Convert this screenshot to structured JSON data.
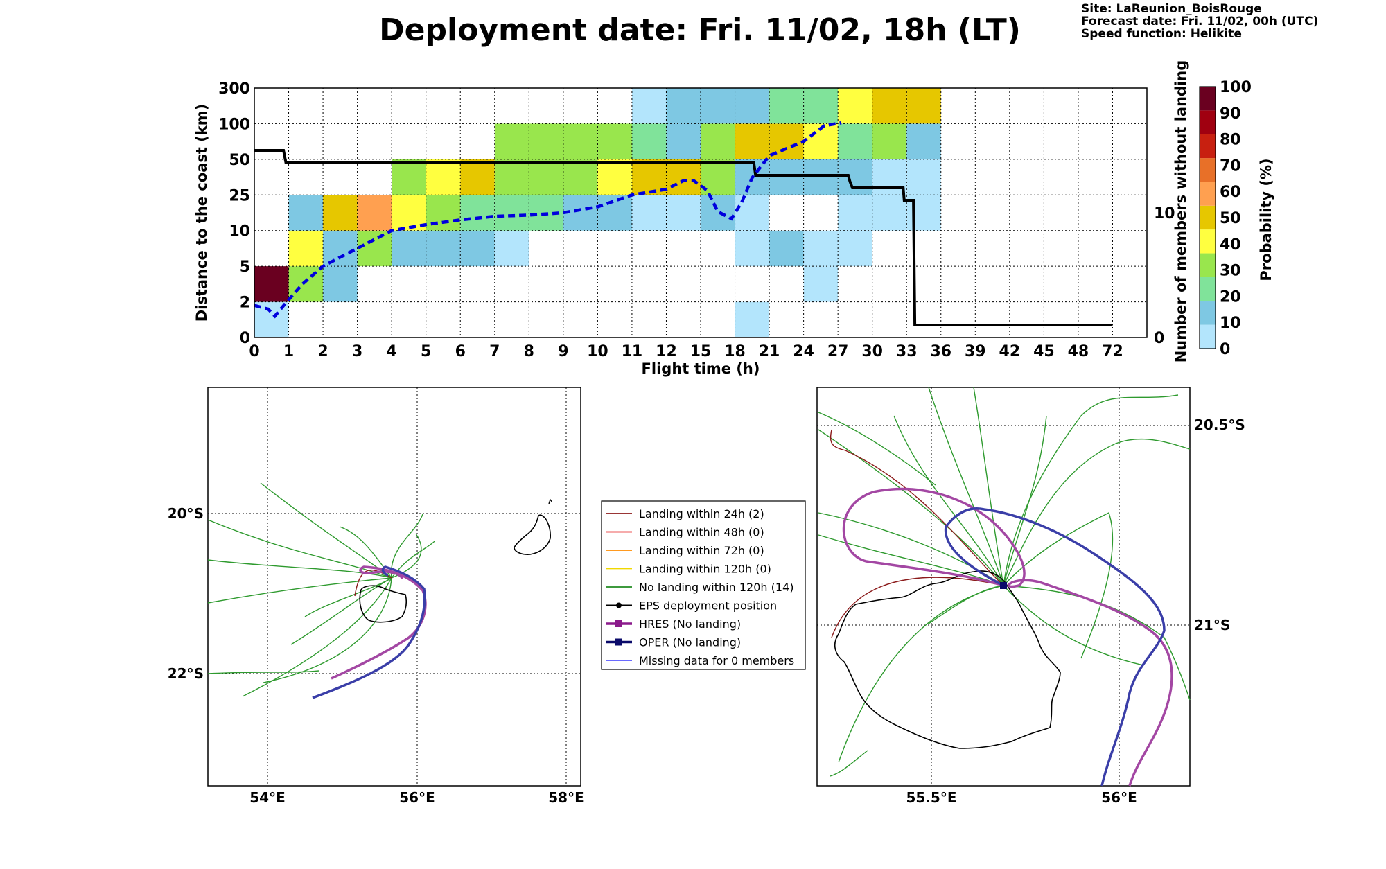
{
  "title": "Deployment date: Fri. 11/02, 18h (LT)",
  "info": {
    "site": "Site: LaReunion_BoisRouge",
    "forecast": "Forecast date: Fri. 11/02, 00h (UTC)",
    "speed": "Speed function: Helikite"
  },
  "colorbar": {
    "label": "Probability (%)",
    "ticks": [
      "0",
      "10",
      "20",
      "30",
      "40",
      "50",
      "60",
      "70",
      "80",
      "90",
      "100"
    ],
    "colors": [
      "#b3e5fc",
      "#7ec8e3",
      "#80e39a",
      "#99e64d",
      "#ffff40",
      "#e6c700",
      "#ffa050",
      "#e87028",
      "#c82010",
      "#a00010",
      "#6a0020"
    ]
  },
  "chart_data": [
    {
      "type": "heatmap",
      "xlabel": "Flight time (h)",
      "ylabel": "Distance to the coast (km)",
      "y2label": "Number of members without landing",
      "x_bin_edges": [
        0,
        1,
        2,
        3,
        4,
        5,
        6,
        7,
        8,
        9,
        10,
        11,
        12,
        13,
        14,
        15,
        16,
        17,
        18,
        19,
        20,
        21,
        22,
        23,
        24,
        25,
        26
      ],
      "x_tick_labels": [
        "0",
        "1",
        "2",
        "3",
        "4",
        "5",
        "6",
        "7",
        "8",
        "9",
        "10",
        "11",
        "12",
        "15",
        "18",
        "21",
        "24",
        "27",
        "30",
        "33",
        "36",
        "39",
        "42",
        "45",
        "48",
        "72"
      ],
      "y_bin_edges": [
        0,
        2,
        5,
        10,
        25,
        50,
        100,
        300
      ],
      "y_tick_labels": [
        "0",
        "2",
        "5",
        "10",
        "25",
        "50",
        "100",
        "300"
      ],
      "y2_ticks": [
        "0",
        "10"
      ],
      "cells": [
        {
          "x": [
            0,
            1
          ],
          "y": [
            0,
            2
          ],
          "p": 0
        },
        {
          "x": [
            0,
            1
          ],
          "y": [
            2,
            5
          ],
          "p": 100
        },
        {
          "x": [
            1,
            2
          ],
          "y": [
            2,
            5
          ],
          "p": 30
        },
        {
          "x": [
            2,
            3
          ],
          "y": [
            2,
            5
          ],
          "p": 10
        },
        {
          "x": [
            1,
            2
          ],
          "y": [
            5,
            10
          ],
          "p": 40
        },
        {
          "x": [
            2,
            3
          ],
          "y": [
            5,
            10
          ],
          "p": 10
        },
        {
          "x": [
            3,
            4
          ],
          "y": [
            5,
            10
          ],
          "p": 30
        },
        {
          "x": [
            4,
            5
          ],
          "y": [
            5,
            10
          ],
          "p": 10
        },
        {
          "x": [
            5,
            6
          ],
          "y": [
            5,
            10
          ],
          "p": 10
        },
        {
          "x": [
            6,
            7
          ],
          "y": [
            5,
            10
          ],
          "p": 10
        },
        {
          "x": [
            7,
            8
          ],
          "y": [
            5,
            10
          ],
          "p": 0
        },
        {
          "x": [
            1,
            2
          ],
          "y": [
            10,
            25
          ],
          "p": 10
        },
        {
          "x": [
            2,
            3
          ],
          "y": [
            10,
            25
          ],
          "p": 50
        },
        {
          "x": [
            3,
            4
          ],
          "y": [
            10,
            25
          ],
          "p": 60
        },
        {
          "x": [
            4,
            5
          ],
          "y": [
            10,
            25
          ],
          "p": 40
        },
        {
          "x": [
            5,
            6
          ],
          "y": [
            10,
            25
          ],
          "p": 30
        },
        {
          "x": [
            6,
            7
          ],
          "y": [
            10,
            25
          ],
          "p": 20
        },
        {
          "x": [
            7,
            8
          ],
          "y": [
            10,
            25
          ],
          "p": 20
        },
        {
          "x": [
            8,
            9
          ],
          "y": [
            10,
            25
          ],
          "p": 20
        },
        {
          "x": [
            9,
            10
          ],
          "y": [
            10,
            25
          ],
          "p": 10
        },
        {
          "x": [
            10,
            11
          ],
          "y": [
            10,
            25
          ],
          "p": 10
        },
        {
          "x": [
            11,
            12
          ],
          "y": [
            10,
            25
          ],
          "p": 0
        },
        {
          "x": [
            12,
            13
          ],
          "y": [
            10,
            25
          ],
          "p": 0
        },
        {
          "x": [
            13,
            14
          ],
          "y": [
            10,
            25
          ],
          "p": 10
        },
        {
          "x": [
            14,
            15
          ],
          "y": [
            10,
            25
          ],
          "p": 0
        },
        {
          "x": [
            17,
            18
          ],
          "y": [
            10,
            25
          ],
          "p": 0
        },
        {
          "x": [
            18,
            19
          ],
          "y": [
            10,
            25
          ],
          "p": 0
        },
        {
          "x": [
            19,
            20
          ],
          "y": [
            10,
            25
          ],
          "p": 0
        },
        {
          "x": [
            4,
            5
          ],
          "y": [
            25,
            50
          ],
          "p": 30
        },
        {
          "x": [
            5,
            6
          ],
          "y": [
            25,
            50
          ],
          "p": 40
        },
        {
          "x": [
            6,
            7
          ],
          "y": [
            25,
            50
          ],
          "p": 50
        },
        {
          "x": [
            7,
            8
          ],
          "y": [
            25,
            50
          ],
          "p": 30
        },
        {
          "x": [
            8,
            9
          ],
          "y": [
            25,
            50
          ],
          "p": 30
        },
        {
          "x": [
            9,
            10
          ],
          "y": [
            25,
            50
          ],
          "p": 30
        },
        {
          "x": [
            10,
            11
          ],
          "y": [
            25,
            50
          ],
          "p": 40
        },
        {
          "x": [
            11,
            12
          ],
          "y": [
            25,
            50
          ],
          "p": 50
        },
        {
          "x": [
            12,
            13
          ],
          "y": [
            25,
            50
          ],
          "p": 50
        },
        {
          "x": [
            13,
            14
          ],
          "y": [
            25,
            50
          ],
          "p": 30
        },
        {
          "x": [
            14,
            15
          ],
          "y": [
            25,
            50
          ],
          "p": 10
        },
        {
          "x": [
            15,
            16
          ],
          "y": [
            25,
            50
          ],
          "p": 10
        },
        {
          "x": [
            16,
            17
          ],
          "y": [
            25,
            50
          ],
          "p": 10
        },
        {
          "x": [
            17,
            18
          ],
          "y": [
            25,
            50
          ],
          "p": 10
        },
        {
          "x": [
            18,
            19
          ],
          "y": [
            25,
            50
          ],
          "p": 0
        },
        {
          "x": [
            19,
            20
          ],
          "y": [
            25,
            50
          ],
          "p": 0
        },
        {
          "x": [
            7,
            8
          ],
          "y": [
            50,
            100
          ],
          "p": 30
        },
        {
          "x": [
            8,
            9
          ],
          "y": [
            50,
            100
          ],
          "p": 30
        },
        {
          "x": [
            9,
            10
          ],
          "y": [
            50,
            100
          ],
          "p": 30
        },
        {
          "x": [
            10,
            11
          ],
          "y": [
            50,
            100
          ],
          "p": 30
        },
        {
          "x": [
            11,
            12
          ],
          "y": [
            50,
            100
          ],
          "p": 20
        },
        {
          "x": [
            12,
            13
          ],
          "y": [
            50,
            100
          ],
          "p": 10
        },
        {
          "x": [
            13,
            14
          ],
          "y": [
            50,
            100
          ],
          "p": 30
        },
        {
          "x": [
            14,
            15
          ],
          "y": [
            50,
            100
          ],
          "p": 50
        },
        {
          "x": [
            15,
            16
          ],
          "y": [
            50,
            100
          ],
          "p": 50
        },
        {
          "x": [
            16,
            17
          ],
          "y": [
            50,
            100
          ],
          "p": 40
        },
        {
          "x": [
            17,
            18
          ],
          "y": [
            50,
            100
          ],
          "p": 20
        },
        {
          "x": [
            18,
            19
          ],
          "y": [
            50,
            100
          ],
          "p": 30
        },
        {
          "x": [
            19,
            20
          ],
          "y": [
            50,
            100
          ],
          "p": 10
        },
        {
          "x": [
            11,
            12
          ],
          "y": [
            100,
            300
          ],
          "p": 0
        },
        {
          "x": [
            12,
            13
          ],
          "y": [
            100,
            300
          ],
          "p": 10
        },
        {
          "x": [
            13,
            14
          ],
          "y": [
            100,
            300
          ],
          "p": 10
        },
        {
          "x": [
            14,
            15
          ],
          "y": [
            100,
            300
          ],
          "p": 10
        },
        {
          "x": [
            15,
            16
          ],
          "y": [
            100,
            300
          ],
          "p": 20
        },
        {
          "x": [
            16,
            17
          ],
          "y": [
            100,
            300
          ],
          "p": 20
        },
        {
          "x": [
            17,
            18
          ],
          "y": [
            100,
            300
          ],
          "p": 40
        },
        {
          "x": [
            18,
            19
          ],
          "y": [
            100,
            300
          ],
          "p": 50
        },
        {
          "x": [
            19,
            20
          ],
          "y": [
            100,
            300
          ],
          "p": 50
        },
        {
          "x": [
            14,
            15
          ],
          "y": [
            0,
            2
          ],
          "p": 0
        },
        {
          "x": [
            14,
            15
          ],
          "y": [
            5,
            10
          ],
          "p": 0
        },
        {
          "x": [
            15,
            16
          ],
          "y": [
            5,
            10
          ],
          "p": 10
        },
        {
          "x": [
            16,
            17
          ],
          "y": [
            5,
            10
          ],
          "p": 0
        },
        {
          "x": [
            17,
            18
          ],
          "y": [
            5,
            10
          ],
          "p": 0
        },
        {
          "x": [
            16,
            17
          ],
          "y": [
            2,
            5
          ],
          "p": 0
        }
      ],
      "series": [
        {
          "name": "",
          "style": "solid black",
          "axis": "right",
          "points": [
            [
              0,
              15
            ],
            [
              0.85,
              15
            ],
            [
              0.92,
              14
            ],
            [
              14.55,
              14
            ],
            [
              14.6,
              13
            ],
            [
              17.3,
              13
            ],
            [
              17.35,
              12.5
            ],
            [
              17.42,
              12
            ],
            [
              18.9,
              12
            ],
            [
              18.93,
              11
            ],
            [
              19.2,
              11
            ],
            [
              19.24,
              1
            ],
            [
              25,
              1
            ]
          ]
        },
        {
          "name": "",
          "style": "dashed blue",
          "axis": "left",
          "points": [
            [
              0,
              1.8
            ],
            [
              0.4,
              1.6
            ],
            [
              0.6,
              1.2
            ],
            [
              0.9,
              1.9
            ],
            [
              1.4,
              3.5
            ],
            [
              2,
              5
            ],
            [
              3,
              7.5
            ],
            [
              4,
              10
            ],
            [
              5,
              12.5
            ],
            [
              6,
              14.5
            ],
            [
              7,
              16
            ],
            [
              8,
              16.5
            ],
            [
              9,
              17.5
            ],
            [
              10,
              20
            ],
            [
              11,
              25
            ],
            [
              12,
              29
            ],
            [
              12.5,
              35
            ],
            [
              12.8,
              35
            ],
            [
              13.2,
              28
            ],
            [
              13.5,
              18
            ],
            [
              13.9,
              15
            ],
            [
              14.2,
              22
            ],
            [
              14.5,
              37
            ],
            [
              15,
              55
            ],
            [
              16,
              75
            ],
            [
              16.6,
              97
            ],
            [
              17.1,
              105
            ]
          ]
        }
      ]
    },
    {
      "type": "map",
      "x_ticks": [
        "54°E",
        "56°E",
        "58°E"
      ],
      "y_ticks": [
        "20°S",
        "22°S"
      ],
      "legend": {
        "entries": [
          {
            "label": "Landing within 24h (2)",
            "color": "#8b1a1a"
          },
          {
            "label": "Landing within 48h (0)",
            "color": "#e82020"
          },
          {
            "label": "Landing within 72h (0)",
            "color": "#ff8c00"
          },
          {
            "label": "Landing within 120h (0)",
            "color": "#f0d800"
          },
          {
            "label": "No landing within 120h (14)",
            "color": "#228b22"
          },
          {
            "label": "EPS deployment position",
            "color": "#000000"
          },
          {
            "label": "HRES (No landing)",
            "color": "#8b1a8b"
          },
          {
            "label": "OPER (No landing)",
            "color": "#0a0a6a"
          },
          {
            "label": "Missing data for 0 members",
            "color": "#5555ff"
          }
        ]
      }
    },
    {
      "type": "map",
      "x_ticks": [
        "55.5°E",
        "56°E"
      ],
      "y_ticks": [
        "20.5°S",
        "21°S"
      ]
    }
  ]
}
